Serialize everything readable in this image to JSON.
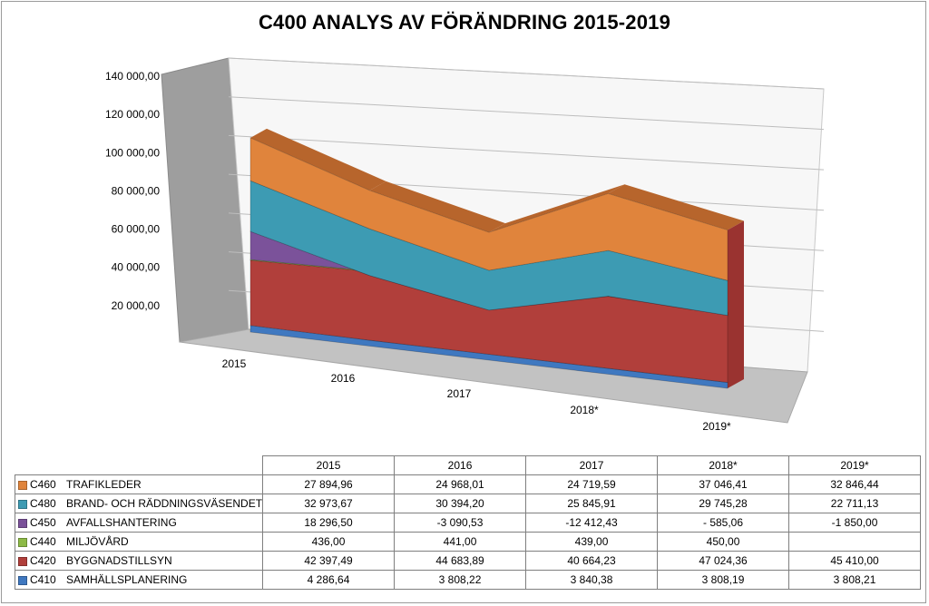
{
  "chart_data": {
    "type": "area",
    "title": "C400 ANALYS AV FÖRÄNDRING 2015-2019",
    "categories": [
      "2015",
      "2016",
      "2017",
      "2018*",
      "2019*"
    ],
    "y_tick_labels": [
      "140 000,00",
      "120 000,00",
      "100 000,00",
      "80 000,00",
      "60 000,00",
      "40 000,00",
      "20 000,00"
    ],
    "y_ticks": [
      140000,
      120000,
      100000,
      80000,
      60000,
      40000,
      20000
    ],
    "ylim": [
      0,
      140000
    ],
    "xlabel": "",
    "ylabel": "",
    "grid": true,
    "legend_position": "table-below",
    "series": [
      {
        "code": "C460",
        "name": "TRAFIKLEDER",
        "color": "#e0843c",
        "values": [
          27894.96,
          24968.01,
          24719.59,
          37046.41,
          32846.44
        ],
        "labels": [
          "27 894,96",
          "24 968,01",
          "24 719,59",
          "37 046,41",
          "32 846,44"
        ]
      },
      {
        "code": "C480",
        "name": "BRAND- OCH RÄDDNINGSVÄSENDET",
        "color": "#3d9bb3",
        "values": [
          32973.67,
          30394.2,
          25845.91,
          29745.28,
          22711.13
        ],
        "labels": [
          "32 973,67",
          "30 394,20",
          "25 845,91",
          "29 745,28",
          "22 711,13"
        ]
      },
      {
        "code": "C450",
        "name": "AVFALLSHANTERING",
        "color": "#7b529a",
        "values": [
          18296.5,
          -3090.53,
          -12412.43,
          -585.06,
          -1850.0
        ],
        "labels": [
          "18 296,50",
          "-3 090,53",
          "-12 412,43",
          "- 585,06",
          "-1 850,00"
        ]
      },
      {
        "code": "C440",
        "name": "MILJÖVÅRD",
        "color": "#8dba46",
        "values": [
          436.0,
          441.0,
          439.0,
          450.0,
          null
        ],
        "labels": [
          "436,00",
          "441,00",
          "439,00",
          "450,00",
          ""
        ]
      },
      {
        "code": "C420",
        "name": "BYGGNADSTILLSYN",
        "color": "#b13f3b",
        "values": [
          42397.49,
          44683.89,
          40664.23,
          47024.36,
          45410.0
        ],
        "labels": [
          "42 397,49",
          "44 683,89",
          "40 664,23",
          "47 024,36",
          "45 410,00"
        ]
      },
      {
        "code": "C410",
        "name": "SAMHÄLLSPLANERING",
        "color": "#3f78c0",
        "values": [
          4286.64,
          3808.22,
          3840.38,
          3808.19,
          3808.21
        ],
        "labels": [
          "4 286,64",
          "3 808,22",
          "3 840,38",
          "3 808,19",
          "3 808,21"
        ]
      }
    ]
  }
}
